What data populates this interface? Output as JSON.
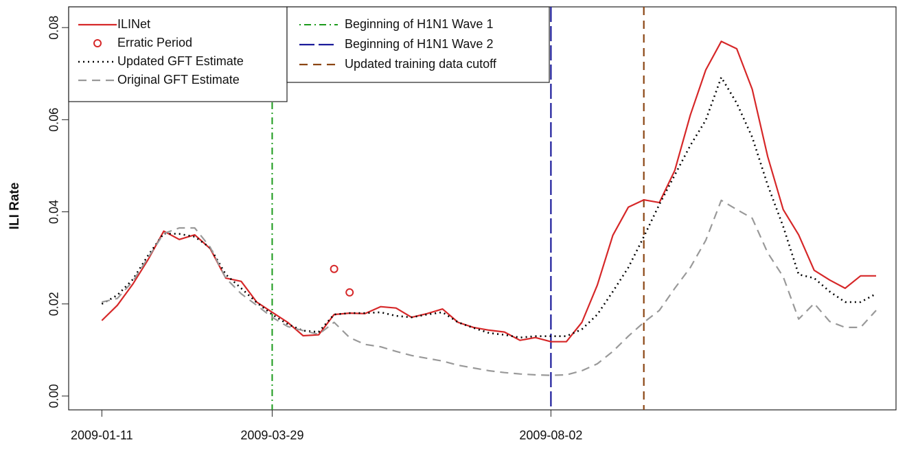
{
  "chart_data": {
    "type": "line",
    "y_label": "ILI Rate",
    "x": [
      "2009-01-11",
      "2009-01-18",
      "2009-01-25",
      "2009-02-01",
      "2009-02-08",
      "2009-02-15",
      "2009-02-22",
      "2009-03-01",
      "2009-03-08",
      "2009-03-15",
      "2009-03-22",
      "2009-03-29",
      "2009-04-05",
      "2009-04-12",
      "2009-04-19",
      "2009-04-26",
      "2009-05-03",
      "2009-05-10",
      "2009-05-17",
      "2009-05-24",
      "2009-05-31",
      "2009-06-07",
      "2009-06-14",
      "2009-06-21",
      "2009-06-28",
      "2009-07-05",
      "2009-07-12",
      "2009-07-19",
      "2009-07-26",
      "2009-08-02",
      "2009-08-09",
      "2009-08-16",
      "2009-08-23",
      "2009-08-30",
      "2009-09-06",
      "2009-09-13",
      "2009-09-20",
      "2009-09-27",
      "2009-10-04",
      "2009-10-11",
      "2009-10-18",
      "2009-10-25",
      "2009-11-01",
      "2009-11-08",
      "2009-11-15",
      "2009-11-22",
      "2009-11-29",
      "2009-12-06",
      "2009-12-13",
      "2009-12-20",
      "2009-12-27"
    ],
    "series": [
      {
        "name": "ILINet",
        "color": "#d62728",
        "style": "solid",
        "values": [
          0.0164,
          0.0197,
          0.0243,
          0.0297,
          0.0358,
          0.034,
          0.035,
          0.032,
          0.0256,
          0.0249,
          0.0204,
          0.0182,
          0.016,
          0.0131,
          0.0133,
          0.0177,
          0.018,
          0.0179,
          0.0194,
          0.0191,
          0.0171,
          0.0179,
          0.0189,
          0.016,
          0.0149,
          0.0143,
          0.0139,
          0.0121,
          0.0127,
          0.0118,
          0.0118,
          0.016,
          0.0241,
          0.0349,
          0.041,
          0.0426,
          0.042,
          0.049,
          0.061,
          0.0708,
          0.077,
          0.0754,
          0.0666,
          0.052,
          0.0405,
          0.035,
          0.0273,
          0.0252,
          0.0234,
          0.0261,
          0.0261
        ]
      },
      {
        "name": "Erratic Period",
        "color": "#d62728",
        "style": "points",
        "values": [
          null,
          null,
          null,
          null,
          null,
          null,
          null,
          null,
          null,
          null,
          null,
          null,
          null,
          null,
          null,
          0.0276,
          0.0225,
          null,
          null,
          null,
          null,
          null,
          null,
          null,
          null,
          null,
          null,
          null,
          null,
          null,
          null,
          null,
          null,
          null,
          null,
          null,
          null,
          null,
          null,
          null,
          null,
          null,
          null,
          null,
          null,
          null,
          null,
          null,
          null,
          null,
          null
        ]
      },
      {
        "name": "Updated GFT Estimate",
        "color": "#000000",
        "style": "dotted",
        "values": [
          0.02,
          0.0219,
          0.0253,
          0.0306,
          0.0353,
          0.0352,
          0.0346,
          0.0322,
          0.0264,
          0.0234,
          0.0203,
          0.0177,
          0.0156,
          0.0142,
          0.0139,
          0.0177,
          0.018,
          0.018,
          0.0182,
          0.0174,
          0.0171,
          0.0177,
          0.0182,
          0.016,
          0.0148,
          0.0137,
          0.0133,
          0.0127,
          0.013,
          0.013,
          0.013,
          0.0145,
          0.0177,
          0.0227,
          0.0279,
          0.0346,
          0.0416,
          0.048,
          0.0544,
          0.0599,
          0.0692,
          0.0636,
          0.0562,
          0.0458,
          0.0368,
          0.0264,
          0.0256,
          0.0227,
          0.0204,
          0.0204,
          0.0222
        ]
      },
      {
        "name": "Original GFT Estimate",
        "color": "#999999",
        "style": "dashed",
        "values": [
          0.0204,
          0.0212,
          0.0249,
          0.0301,
          0.0353,
          0.0365,
          0.0365,
          0.0323,
          0.0256,
          0.0222,
          0.0197,
          0.0171,
          0.0151,
          0.0142,
          0.0134,
          0.016,
          0.0127,
          0.0112,
          0.0107,
          0.0097,
          0.0088,
          0.0082,
          0.0076,
          0.0067,
          0.0061,
          0.0055,
          0.0051,
          0.0048,
          0.0046,
          0.0045,
          0.0046,
          0.0055,
          0.007,
          0.0097,
          0.013,
          0.016,
          0.0186,
          0.0234,
          0.0279,
          0.0338,
          0.0425,
          0.0405,
          0.0386,
          0.0311,
          0.0259,
          0.0167,
          0.0201,
          0.0162,
          0.0149,
          0.0149,
          0.0186
        ]
      }
    ],
    "vlines": [
      {
        "name": "Beginning of H1N1 Wave 1",
        "x": "2009-03-29",
        "color": "#1a9a1a",
        "style": "dotdash"
      },
      {
        "name": "Beginning of H1N1 Wave 2",
        "x": "2009-08-02",
        "color": "#1a1a9a",
        "style": "longdash"
      },
      {
        "name": "Updated training data cutoff",
        "x": "2009-09-13",
        "color": "#8b4513",
        "style": "dashed"
      }
    ],
    "xlim": [
      "2008-12-27",
      "2010-01-05"
    ],
    "xticks": [
      "2009-01-11",
      "2009-03-29",
      "2009-08-02"
    ],
    "ylim": [
      -0.003,
      0.0845
    ],
    "yticks": [
      {
        "value": 0,
        "label": "0.00"
      },
      0.02,
      0.04,
      0.06,
      0.08
    ]
  }
}
